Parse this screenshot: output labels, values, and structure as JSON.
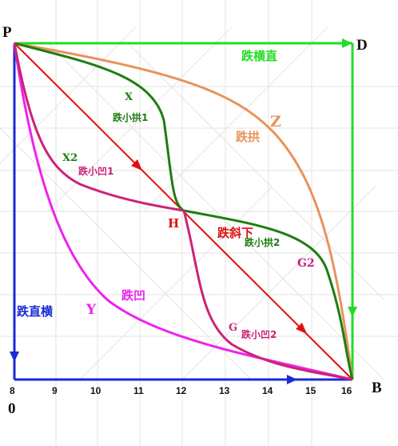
{
  "points": {
    "P": "P",
    "D": "D",
    "B": "B",
    "O": "0",
    "H": "H"
  },
  "x_ticks": [
    "8",
    "9",
    "10",
    "11",
    "12",
    "13",
    "14",
    "15",
    "16"
  ],
  "curves": {
    "heng_zhi": {
      "label": "跌横直",
      "color": "#22dd22"
    },
    "zhi_heng": {
      "label": "跌直横",
      "color": "#1a2bd6"
    },
    "xie_xia": {
      "label": "跌斜下",
      "color": "#e01010"
    },
    "gong": {
      "label": "跌拱",
      "tag": "Z",
      "color": "#e8935a"
    },
    "ao": {
      "label": "跌凹",
      "tag": "Y",
      "color": "#ee22ee"
    },
    "xiao_gong_1": {
      "label": "跌小拱1",
      "tag": "X",
      "color": "#1f7d12"
    },
    "xiao_gong_2": {
      "label": "跌小拱2",
      "tag": "G2",
      "color": "#1f7d12"
    },
    "xiao_ao_1": {
      "label": "跌小凹1",
      "tag": "X2",
      "color": "#cc2277"
    },
    "xiao_ao_2": {
      "label": "跌小凹2",
      "tag": "G",
      "color": "#cc2277"
    }
  }
}
